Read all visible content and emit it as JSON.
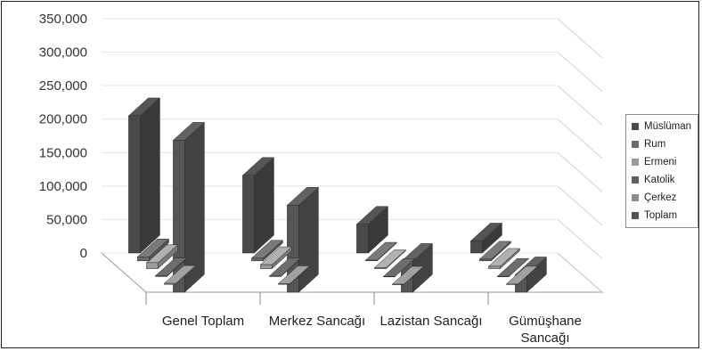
{
  "chart_data": {
    "type": "bar",
    "title": "",
    "xlabel": "",
    "ylabel": "",
    "ylim": [
      0,
      350000
    ],
    "y_ticks": [
      "0",
      "50,000",
      "100,000",
      "150,000",
      "200,000",
      "250,000",
      "300,000",
      "350,000"
    ],
    "grid": true,
    "three_d": true,
    "legend_position": "right",
    "categories": [
      {
        "line1": "Genel Toplam",
        "line2": ""
      },
      {
        "line1": "Merkez Sancağı",
        "line2": ""
      },
      {
        "line1": "Lazistan Sancağı",
        "line2": ""
      },
      {
        "line1": "Gümüşhane",
        "line2": "Sancağı"
      }
    ],
    "series": [
      {
        "name": "Müslüman",
        "color": "#4a4a4a",
        "values": [
          205000,
          116000,
          43000,
          18000
        ]
      },
      {
        "name": "Rum",
        "color": "#6a6a6a",
        "values": [
          6000,
          4000,
          1000,
          2500
        ]
      },
      {
        "name": "Ermeni",
        "color": "#9a9a9a",
        "values": [
          9000,
          6000,
          1500,
          3500
        ]
      },
      {
        "name": "Katolik",
        "color": "#5f5f5f",
        "values": [
          1000,
          700,
          100,
          300
        ]
      },
      {
        "name": "Çerkez",
        "color": "#8c8c8c",
        "values": [
          1500,
          1000,
          200,
          400
        ]
      },
      {
        "name": "Toplam",
        "color": "#555555",
        "values": [
          227000,
          130000,
          46000,
          26000
        ]
      }
    ]
  }
}
